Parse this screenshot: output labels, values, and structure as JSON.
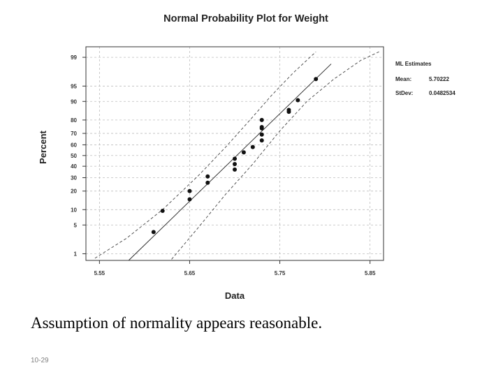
{
  "chart_data": {
    "type": "scatter",
    "title": "Normal Probability Plot for Weight",
    "xlabel": "Data",
    "ylabel": "Percent",
    "xlim": [
      5.535,
      5.865
    ],
    "ylim_percent": [
      0.65,
      99.5
    ],
    "y_scale": "normal-probability",
    "xticks": [
      5.55,
      5.65,
      5.75,
      5.85
    ],
    "xtick_labels": [
      "5.55",
      "5.65",
      "5.75",
      "5.85"
    ],
    "yticks": [
      1,
      5,
      10,
      20,
      30,
      40,
      50,
      60,
      70,
      80,
      90,
      95,
      99
    ],
    "ytick_labels": [
      "1",
      "5",
      "10",
      "20",
      "30",
      "40",
      "50",
      "60",
      "70",
      "80",
      "90",
      "95",
      "99"
    ],
    "grid": true,
    "points": [
      {
        "x": 5.61,
        "y": 3.5
      },
      {
        "x": 5.62,
        "y": 9.5
      },
      {
        "x": 5.65,
        "y": 15
      },
      {
        "x": 5.65,
        "y": 20
      },
      {
        "x": 5.67,
        "y": 26
      },
      {
        "x": 5.67,
        "y": 31
      },
      {
        "x": 5.7,
        "y": 37
      },
      {
        "x": 5.7,
        "y": 42
      },
      {
        "x": 5.7,
        "y": 47
      },
      {
        "x": 5.71,
        "y": 53
      },
      {
        "x": 5.72,
        "y": 58
      },
      {
        "x": 5.73,
        "y": 64
      },
      {
        "x": 5.73,
        "y": 69
      },
      {
        "x": 5.73,
        "y": 74
      },
      {
        "x": 5.73,
        "y": 75
      },
      {
        "x": 5.73,
        "y": 80
      },
      {
        "x": 5.76,
        "y": 85
      },
      {
        "x": 5.76,
        "y": 86
      },
      {
        "x": 5.77,
        "y": 90.5
      },
      {
        "x": 5.79,
        "y": 96.5
      }
    ],
    "fit": {
      "mean": 5.70222,
      "stdev": 0.0482534
    },
    "ci_bands": [
      {
        "name": "lower",
        "points": [
          [
            5.63,
            0.7
          ],
          [
            5.66,
            4.5
          ],
          [
            5.69,
            18
          ],
          [
            5.72,
            42
          ],
          [
            5.75,
            72
          ],
          [
            5.78,
            90
          ],
          [
            5.81,
            96.5
          ],
          [
            5.84,
            98.8
          ],
          [
            5.86,
            99.3
          ]
        ]
      },
      {
        "name": "upper",
        "points": [
          [
            5.545,
            0.75
          ],
          [
            5.58,
            2.5
          ],
          [
            5.62,
            10
          ],
          [
            5.66,
            32
          ],
          [
            5.69,
            58
          ],
          [
            5.72,
            82
          ],
          [
            5.74,
            92
          ],
          [
            5.765,
            97.5
          ],
          [
            5.79,
            99.3
          ]
        ]
      }
    ],
    "estimates": {
      "heading": "ML Estimates",
      "rows": [
        {
          "label": "Mean:",
          "value": "5.70222"
        },
        {
          "label": "StDev:",
          "value": "0.0482534"
        }
      ]
    }
  },
  "caption": "Assumption of normality appears reasonable.",
  "slide_number": "10-29"
}
